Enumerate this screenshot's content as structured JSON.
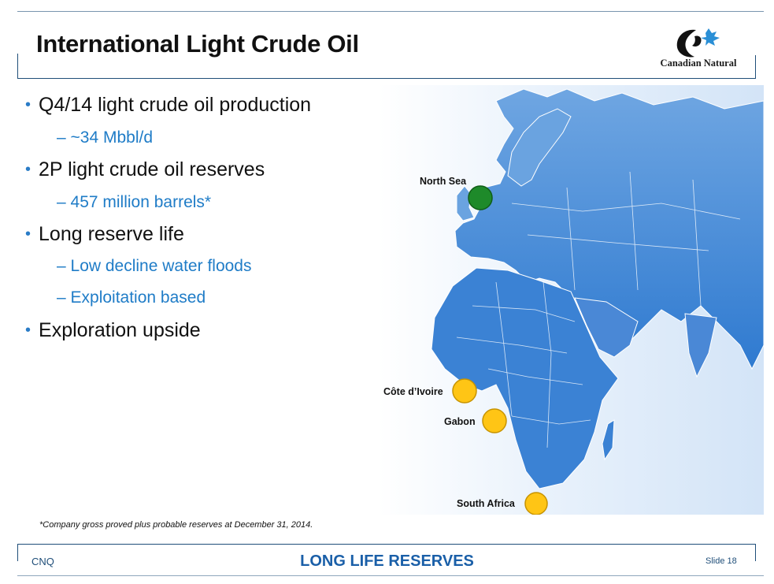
{
  "slide": {
    "title": "International Light Crude Oil",
    "logo_text": "Canadian Natural"
  },
  "bullets": [
    {
      "text": "Q4/14 light crude oil production",
      "sub": [
        "– ~34 Mbbl/d"
      ]
    },
    {
      "text": "2P light crude oil reserves",
      "sub": [
        "– 457 million barrels*"
      ]
    },
    {
      "text": "Long reserve life",
      "sub": [
        "– Low decline water floods",
        "– Exploitation based"
      ]
    },
    {
      "text": "Exploration upside",
      "sub": []
    }
  ],
  "map": {
    "markers": [
      {
        "label": "North Sea",
        "color": "#1e8a2a"
      },
      {
        "label": "Côte d’Ivoire",
        "color": "#ffc515"
      },
      {
        "label": "Gabon",
        "color": "#ffc515"
      },
      {
        "label": "South Africa",
        "color": "#ffc515"
      }
    ]
  },
  "footnote": "*Company gross proved plus probable reserves at December 31, 2014.",
  "footer": {
    "left": "CNQ",
    "center": "LONG LIFE RESERVES",
    "right": "Slide 18"
  },
  "colors": {
    "frame": "#1f4e79",
    "accent": "#1f7cc7",
    "map_land": "#4f8fd6",
    "map_bg": "#dbe9f8"
  }
}
